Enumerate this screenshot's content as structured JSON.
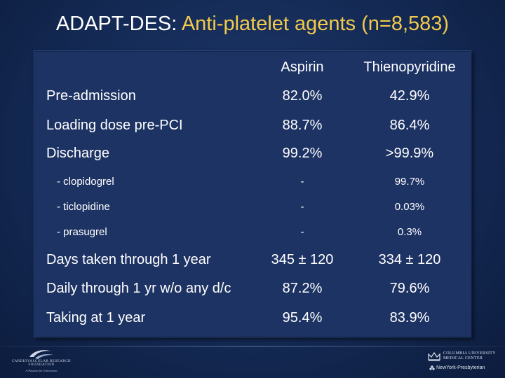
{
  "title": {
    "prefix": "ADAPT-DES:",
    "highlight": "Anti-platelet agents (n=8,583)"
  },
  "table": {
    "headers": [
      "Aspirin",
      "Thienopyridine"
    ],
    "rows": [
      {
        "label": "Pre-admission",
        "aspirin": "82.0%",
        "thieno": "42.9%"
      },
      {
        "label": "Loading dose pre-PCI",
        "aspirin": "88.7%",
        "thieno": "86.4%"
      },
      {
        "label": "Discharge",
        "aspirin": "99.2%",
        "thieno": ">99.9%"
      },
      {
        "label": "- clopidogrel",
        "aspirin": "-",
        "thieno": "99.7%"
      },
      {
        "label": "- ticlopidine",
        "aspirin": "-",
        "thieno": "0.03%"
      },
      {
        "label": "- prasugrel",
        "aspirin": "-",
        "thieno": "0.3%"
      },
      {
        "label": "Days taken through 1 year",
        "aspirin": "345 ± 120",
        "thieno": "334 ± 120"
      },
      {
        "label": "Daily through 1 yr w/o any d/c",
        "aspirin": "87.2%",
        "thieno": "79.6%"
      },
      {
        "label": "Taking at 1 year",
        "aspirin": "95.4%",
        "thieno": "83.9%"
      }
    ]
  },
  "footer": {
    "crf_name": "CARDIOVASCULAR RESEARCH FOUNDATION",
    "crf_tagline": "A Passion for Innovation",
    "cu_line1": "COLUMBIA UNIVERSITY",
    "cu_line2": "MEDICAL CENTER",
    "nyp": "NewYork-Presbyterian"
  }
}
